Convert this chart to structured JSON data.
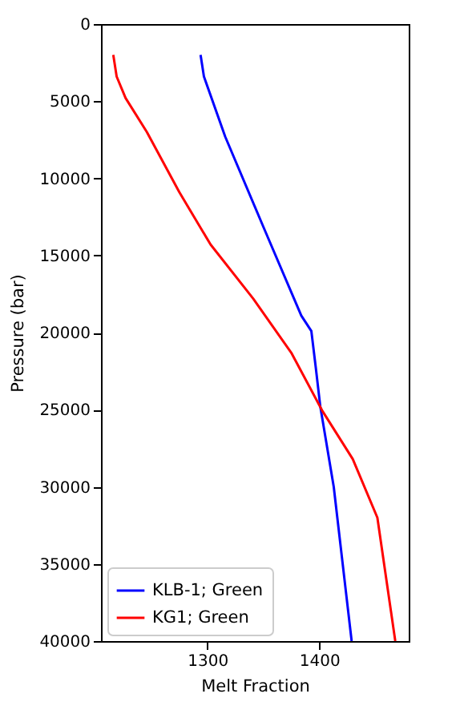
{
  "chart_data": {
    "type": "line",
    "xlabel": "Melt Fraction",
    "ylabel": "Pressure (bar)",
    "xlim": [
      1205,
      1480
    ],
    "xticks": [
      1300,
      1400
    ],
    "ylim": [
      40000,
      0
    ],
    "yticks": [
      0,
      5000,
      10000,
      15000,
      20000,
      25000,
      30000,
      35000,
      40000
    ],
    "grid": false,
    "legend": "bottom left",
    "line_style": "solid",
    "marker": "none",
    "series": [
      {
        "name": "KLB-1; Green",
        "color": "#0000ff",
        "x": [
          1294,
          1297,
          1316,
          1351,
          1384,
          1393,
          1397,
          1401,
          1413,
          1429
        ],
        "values": [
          2000,
          3400,
          7300,
          13300,
          18900,
          19900,
          22300,
          24800,
          30000,
          40000
        ]
      },
      {
        "name": "KG1; Green",
        "color": "#ff0000",
        "x": [
          1216,
          1219,
          1227,
          1246,
          1275,
          1303,
          1341,
          1375,
          1403,
          1430,
          1452,
          1468
        ],
        "values": [
          2000,
          3400,
          4800,
          7000,
          10900,
          14300,
          17800,
          21300,
          25100,
          28200,
          32000,
          40000
        ]
      }
    ]
  }
}
